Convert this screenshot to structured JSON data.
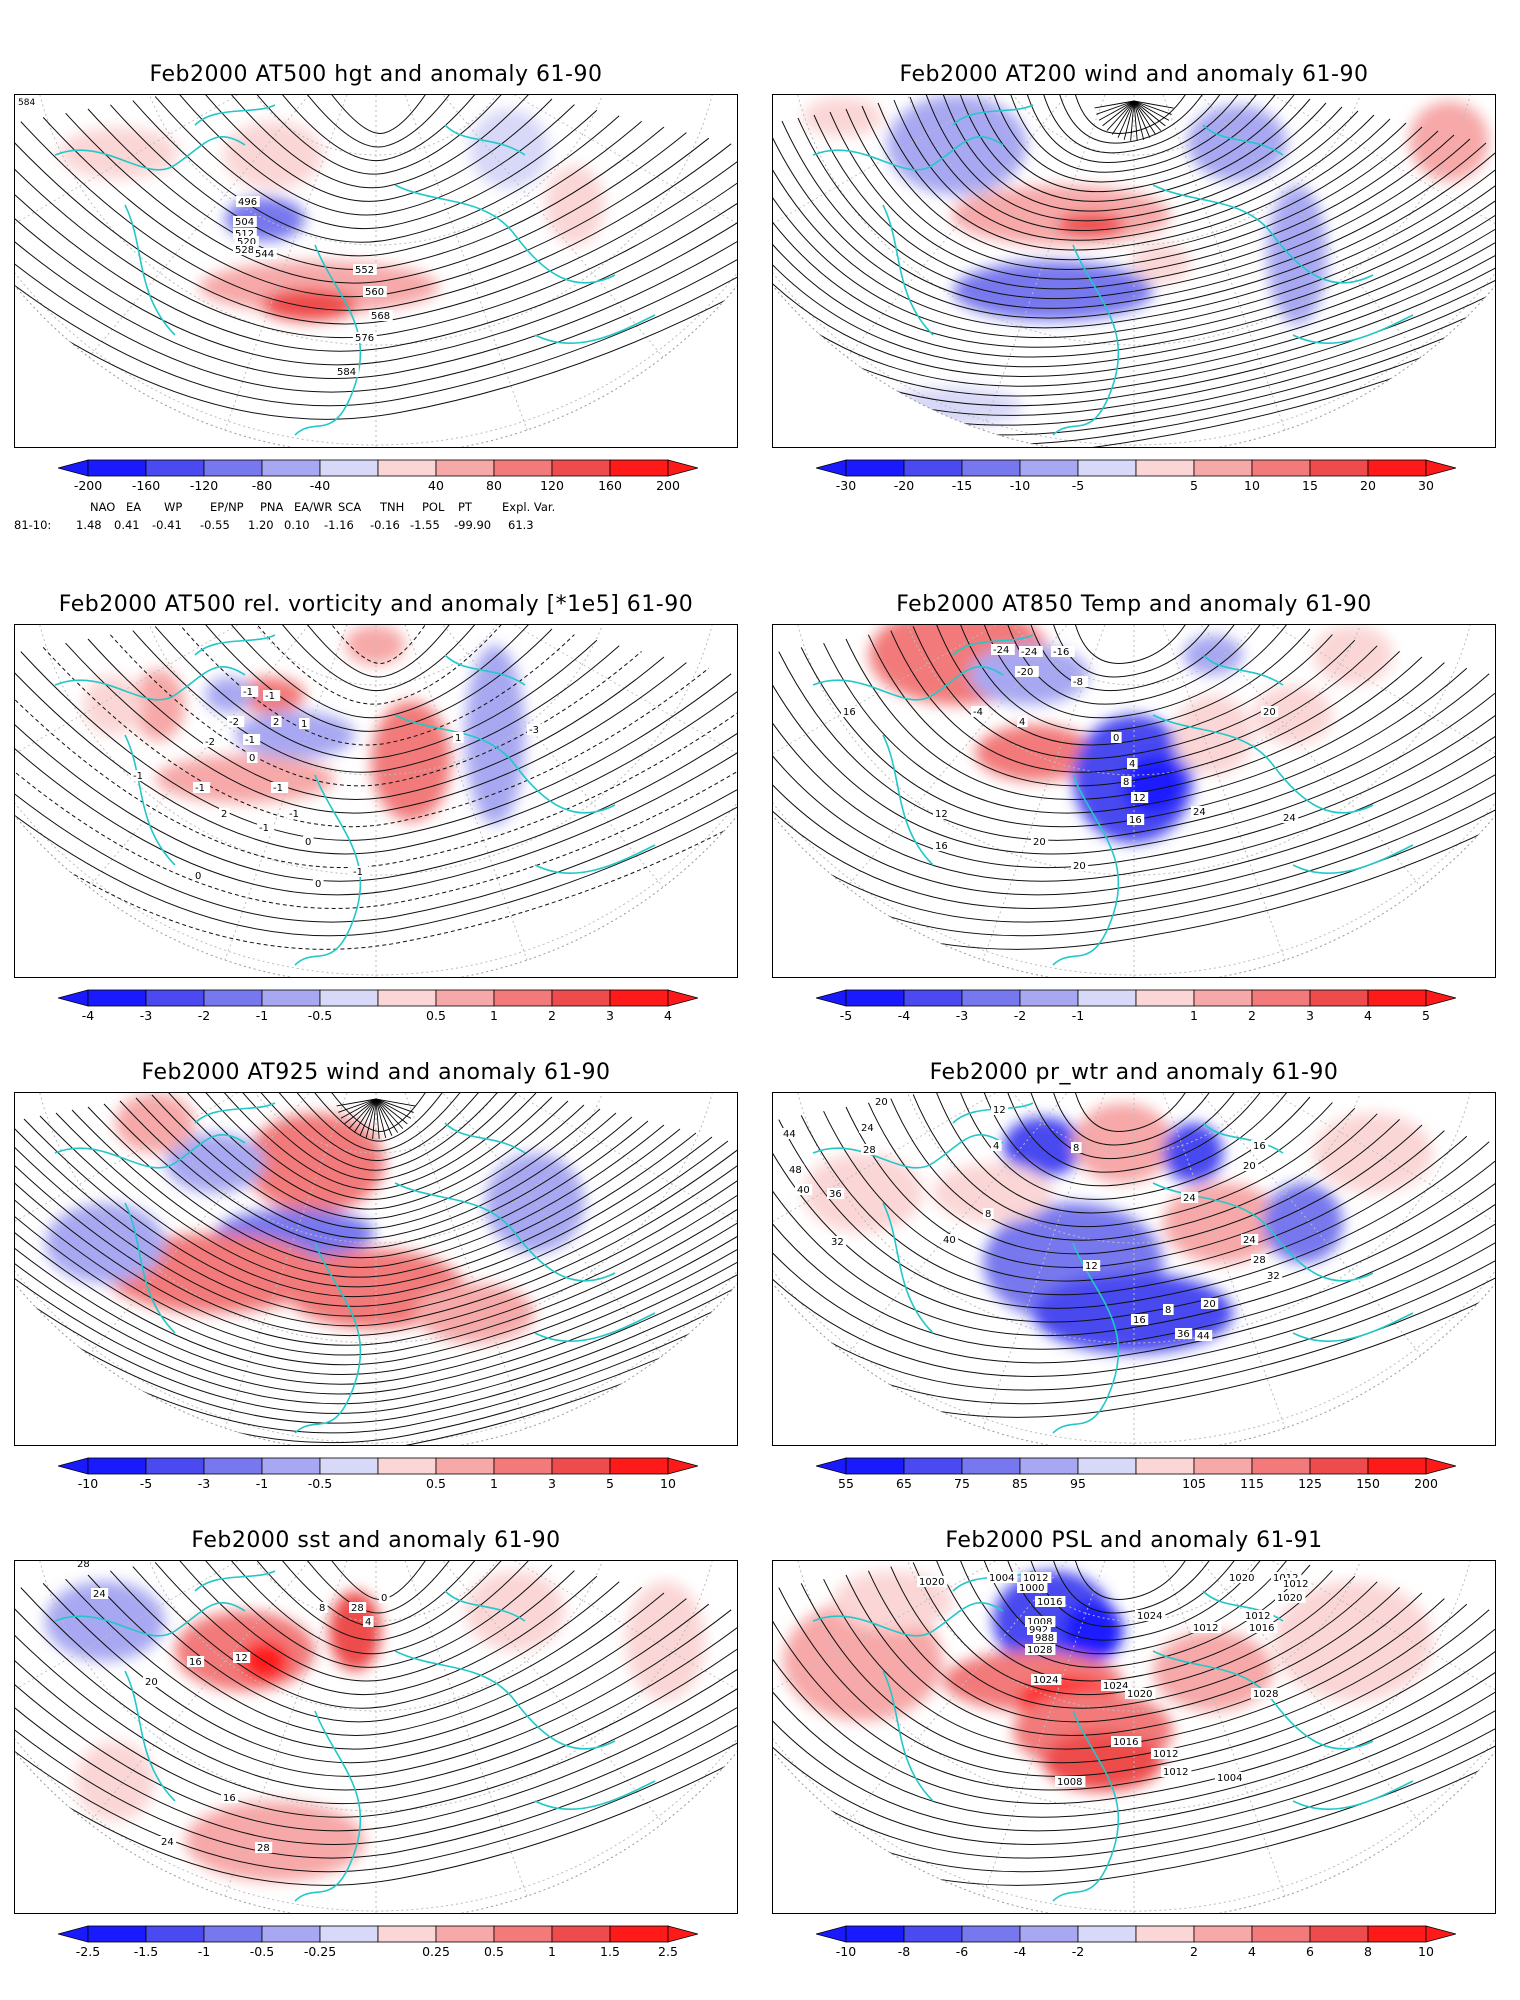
{
  "panels": [
    {
      "id": "p1",
      "title": "Feb2000 AT500 hgt and anomaly 61-90",
      "corner": "584",
      "contour_labels": [
        "496",
        "504",
        "512",
        "520",
        "528",
        "544",
        "552",
        "560",
        "568",
        "576",
        "584"
      ],
      "colorbar": [
        "-200",
        "-160",
        "-120",
        "-80",
        "-40",
        "40",
        "80",
        "120",
        "160",
        "200"
      ]
    },
    {
      "id": "p2",
      "title": "Feb2000 AT200 wind and anomaly 61-90",
      "contour_labels": [],
      "colorbar": [
        "-30",
        "-20",
        "-15",
        "-10",
        "-5",
        "5",
        "10",
        "15",
        "20",
        "30"
      ]
    },
    {
      "id": "p3",
      "title": "Feb2000 AT500 rel. vorticity and anomaly [*1e5] 61-90",
      "contour_labels": [
        "-2",
        "-1",
        "-1",
        "2",
        "-1",
        "1",
        "-3",
        "1",
        "-1",
        "-2",
        "0",
        "-1",
        "-1",
        "2",
        "-1",
        "0",
        "-1",
        "0",
        "0",
        "-1"
      ],
      "colorbar": [
        "-4",
        "-3",
        "-2",
        "-1",
        "-0.5",
        "0.5",
        "1",
        "2",
        "3",
        "4"
      ]
    },
    {
      "id": "p4",
      "title": "Feb2000 AT850 Temp and anomaly 61-90",
      "contour_labels": [
        "-24",
        "-24",
        "-16",
        "-20",
        "-8",
        "-4",
        "4",
        "0",
        "16",
        "20",
        "4",
        "8",
        "12",
        "16",
        "12",
        "24",
        "20",
        "16",
        "20",
        "24"
      ],
      "colorbar": [
        "-5",
        "-4",
        "-3",
        "-2",
        "-1",
        "1",
        "2",
        "3",
        "4",
        "5"
      ]
    },
    {
      "id": "p5",
      "title": "Feb2000 AT925 wind and anomaly 61-90",
      "contour_labels": [],
      "colorbar": [
        "-10",
        "-5",
        "-3",
        "-1",
        "-0.5",
        "0.5",
        "1",
        "3",
        "5",
        "10"
      ]
    },
    {
      "id": "p6",
      "title": "Feb2000 pr_wtr and anomaly 61-90",
      "contour_labels": [
        "20",
        "12",
        "44",
        "24",
        "28",
        "48",
        "40",
        "36",
        "4",
        "8",
        "16",
        "24",
        "20",
        "32",
        "40",
        "8",
        "12",
        "16",
        "8",
        "20",
        "24",
        "28",
        "32",
        "36",
        "44"
      ],
      "colorbar": [
        "55",
        "65",
        "75",
        "85",
        "95",
        "105",
        "115",
        "125",
        "150",
        "200"
      ]
    },
    {
      "id": "p7",
      "title": "Feb2000 sst and anomaly 61-90",
      "contour_labels": [
        "28",
        "24",
        "20",
        "16",
        "12",
        "8",
        "4",
        "0",
        "16",
        "28",
        "28",
        "24"
      ],
      "colorbar": [
        "-2.5",
        "-1.5",
        "-1",
        "-0.5",
        "-0.25",
        "0.25",
        "0.5",
        "1",
        "1.5",
        "2.5"
      ]
    },
    {
      "id": "p8",
      "title": "Feb2000 PSL and anomaly 61-91",
      "contour_labels": [
        "1020",
        "1004",
        "1012",
        "1000",
        "1016",
        "1008",
        "992",
        "988",
        "1028",
        "1024",
        "1016",
        "1020",
        "1012",
        "1012",
        "1020",
        "1028",
        "1024",
        "1024",
        "1020",
        "1016",
        "1008",
        "1004",
        "1012",
        "1012",
        "1012",
        "1012"
      ],
      "colorbar": [
        "-10",
        "-8",
        "-6",
        "-4",
        "-2",
        "2",
        "4",
        "6",
        "8",
        "10"
      ]
    }
  ],
  "indices": {
    "headers": [
      "NAO",
      "EA",
      "WP",
      "EP/NP",
      "PNA",
      "EA/WR",
      "SCA",
      "TNH",
      "POL",
      "PT",
      "Expl. Var."
    ],
    "row_label": "81-10:",
    "values": [
      "1.48",
      "0.41",
      "-0.41",
      "-0.55",
      "1.20",
      "0.10",
      "-1.16",
      "-0.16",
      "-1.55",
      "-99.90",
      "61.3"
    ]
  },
  "colors": {
    "coast": "#22c8c8",
    "neg": [
      "#1a1aff",
      "#4a4af0",
      "#7878ee",
      "#a8a8f2",
      "#d8d8f8"
    ],
    "pos": [
      "#fbd6d6",
      "#f7a8a8",
      "#f27a7a",
      "#ee4c4c",
      "#ff1a1a"
    ]
  }
}
